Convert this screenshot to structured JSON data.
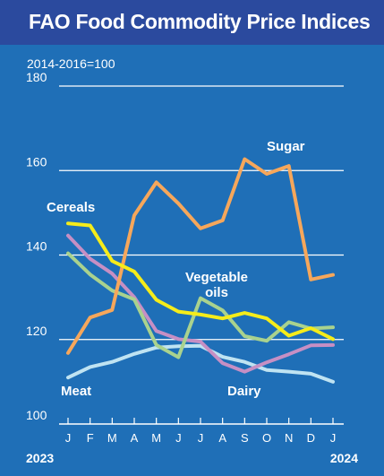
{
  "title": "FAO Food Commodity Price Indices",
  "subtitle": "2014-2016=100",
  "colors": {
    "background": "#1f6fb7",
    "title_bar": "#2b4a9e",
    "grid": "#ffffff",
    "sugar": "#f6a75b",
    "cereals": "#f5ec1a",
    "vegetable_oils": "#a9d28e",
    "dairy": "#c68fc4",
    "meat": "#bfe3f2"
  },
  "chart_data": {
    "type": "line",
    "categories": [
      "J",
      "F",
      "M",
      "A",
      "M",
      "J",
      "J",
      "A",
      "S",
      "O",
      "N",
      "D",
      "J"
    ],
    "year_labels": [
      "2023",
      "2024"
    ],
    "ylim": [
      100,
      180
    ],
    "yticks": [
      100,
      120,
      140,
      160,
      180
    ],
    "grid": true,
    "series": [
      {
        "name": "Sugar",
        "color": "#f6a75b",
        "values": [
          116.8,
          125.2,
          127.0,
          149.4,
          157.2,
          152.2,
          146.3,
          148.2,
          162.7,
          159.2,
          161.1,
          134.2,
          135.3
        ]
      },
      {
        "name": "Cereals",
        "color": "#f5ec1a",
        "values": [
          147.5,
          147.0,
          138.6,
          136.1,
          129.4,
          126.6,
          125.9,
          125.0,
          126.3,
          125.0,
          120.9,
          122.7,
          120.1
        ]
      },
      {
        "name": "Vegetable oils",
        "color": "#a9d28e",
        "values": [
          140.4,
          135.4,
          131.6,
          129.5,
          118.7,
          115.8,
          129.8,
          126.9,
          120.8,
          119.7,
          124.1,
          122.6,
          122.9
        ]
      },
      {
        "name": "Dairy",
        "color": "#c68fc4",
        "values": [
          144.6,
          139.1,
          135.6,
          130.0,
          122.0,
          120.1,
          119.5,
          114.4,
          112.4,
          114.6,
          116.5,
          118.6,
          118.7
        ]
      },
      {
        "name": "Meat",
        "color": "#bfe3f2",
        "values": [
          111.0,
          113.5,
          114.7,
          116.6,
          118.1,
          118.4,
          118.5,
          115.9,
          114.7,
          112.8,
          112.4,
          111.9,
          110.0
        ]
      }
    ]
  }
}
